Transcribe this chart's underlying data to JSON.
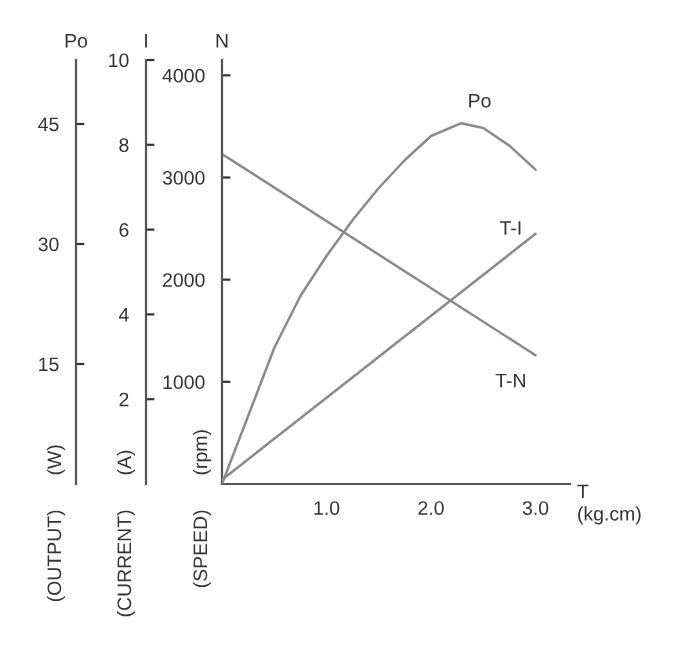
{
  "chart_data": {
    "type": "line",
    "xlabel": "T\n(kg.cm)",
    "ylabel": "N",
    "y2label": "I",
    "y3label": "Po",
    "xlim": [
      0,
      3.33
    ],
    "xticks": [
      {
        "value": 1,
        "label": "1.0"
      },
      {
        "value": 2,
        "label": "2.0"
      },
      {
        "value": 3,
        "label": "3.0"
      }
    ],
    "ylim": [
      0,
      4150
    ],
    "yticks": [
      1000,
      2000,
      3000,
      4000
    ],
    "y2lim": [
      0,
      10
    ],
    "y2ticks": [
      2,
      4,
      6,
      8,
      10
    ],
    "y3lim": [
      0,
      53
    ],
    "y3ticks": [
      15,
      30,
      45
    ],
    "series": [
      {
        "name": "Po",
        "color": "#8a8a8a",
        "axis": "y3",
        "x": [
          0,
          0.25,
          0.5,
          0.75,
          1.0,
          1.25,
          1.5,
          1.75,
          2.0,
          2.29,
          2.5,
          2.75,
          3.0
        ],
        "values": [
          0,
          8.5,
          17,
          23.5,
          28.5,
          33,
          37,
          40.5,
          43.5,
          45.1,
          44.5,
          42.3,
          39.3
        ]
      },
      {
        "name": "T-I",
        "color": "#8a8a8a",
        "axis": "y2",
        "x": [
          0,
          3.0
        ],
        "values": [
          0.1,
          5.9
        ]
      },
      {
        "name": "T-N",
        "color": "#8a8a8a",
        "x": [
          0,
          3.0
        ],
        "values": [
          3230,
          1260
        ]
      }
    ],
    "annotations": [
      "(rpm)",
      "(A)",
      "(W)",
      "(SPEED)",
      "(CURRENT)",
      "(OUTPUT)"
    ],
    "grid": false,
    "legend": false,
    "marker": "none",
    "line_style": "solid"
  }
}
